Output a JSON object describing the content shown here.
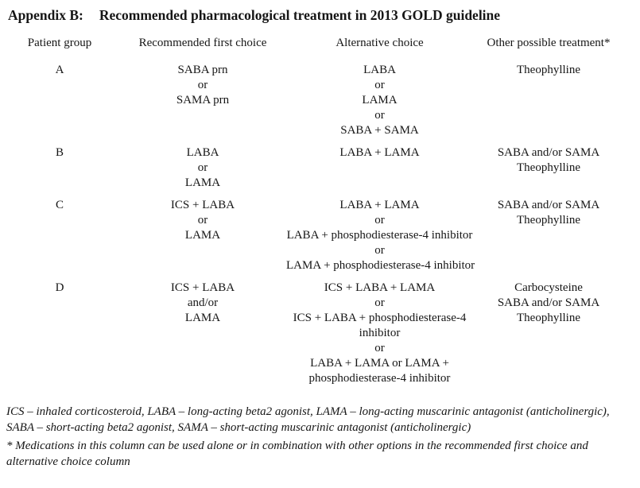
{
  "title": {
    "label": "Appendix B:",
    "text": "Recommended pharmacological treatment in 2013 GOLD guideline"
  },
  "table": {
    "headers": [
      "Patient group",
      "Recommended first choice",
      "Alternative choice",
      "Other possible treatment*"
    ],
    "rows": [
      {
        "group": "A",
        "first_choice": [
          "SABA prn",
          "or",
          "SAMA prn"
        ],
        "alternative": [
          "LABA",
          "or",
          "LAMA",
          "or",
          "SABA + SAMA"
        ],
        "other": [
          "Theophylline"
        ]
      },
      {
        "group": "B",
        "first_choice": [
          "LABA",
          "or",
          "LAMA"
        ],
        "alternative": [
          "LABA + LAMA"
        ],
        "other": [
          "SABA and/or SAMA",
          "Theophylline"
        ]
      },
      {
        "group": "C",
        "first_choice": [
          "ICS + LABA",
          "or",
          "LAMA"
        ],
        "alternative": [
          "LABA + LAMA",
          "or",
          "LABA + phosphodiesterase-4 inhibitor",
          "or",
          "LAMA + phosphodiesterase-4 inhibitor"
        ],
        "other": [
          "SABA and/or SAMA",
          "Theophylline"
        ]
      },
      {
        "group": "D",
        "first_choice": [
          "ICS + LABA",
          "and/or",
          "LAMA"
        ],
        "alternative": [
          "ICS + LABA + LAMA",
          "or",
          "ICS + LABA + phosphodiesterase-4",
          "inhibitor",
          "or",
          "LABA + LAMA or LAMA +",
          "phosphodiesterase-4 inhibitor"
        ],
        "other": [
          "Carbocysteine",
          "SABA and/or SAMA",
          "Theophylline"
        ]
      }
    ]
  },
  "footnotes": {
    "abbreviations": [
      "ICS – inhaled corticosteroid, LABA – long-acting beta2 agonist, LAMA – long-acting muscarinic antagonist (anticholinergic),",
      "SABA – short-acting beta2 agonist, SAMA – short-acting muscarinic antagonist (anticholinergic)"
    ],
    "asterisk_note": [
      "* Medications in this column can be used alone or in combination with other options in the recommended first choice and",
      "alternative choice column"
    ]
  }
}
